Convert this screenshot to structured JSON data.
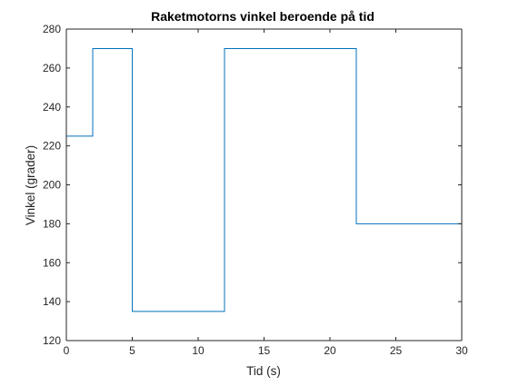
{
  "chart_data": {
    "type": "line",
    "style": "stairs",
    "title": "Raketmotorns vinkel beroende på tid",
    "xlabel": "Tid (s)",
    "ylabel": "Vinkel (grader)",
    "xlim": [
      0,
      30
    ],
    "ylim": [
      120,
      280
    ],
    "xticks": [
      0,
      5,
      10,
      15,
      20,
      25,
      30
    ],
    "yticks": [
      120,
      140,
      160,
      180,
      200,
      220,
      240,
      260,
      280
    ],
    "grid": false,
    "series": [
      {
        "color": "#0072BD",
        "x": [
          0,
          2,
          5,
          12,
          22,
          30
        ],
        "y": [
          225,
          270,
          135,
          270,
          180,
          180
        ]
      }
    ]
  }
}
